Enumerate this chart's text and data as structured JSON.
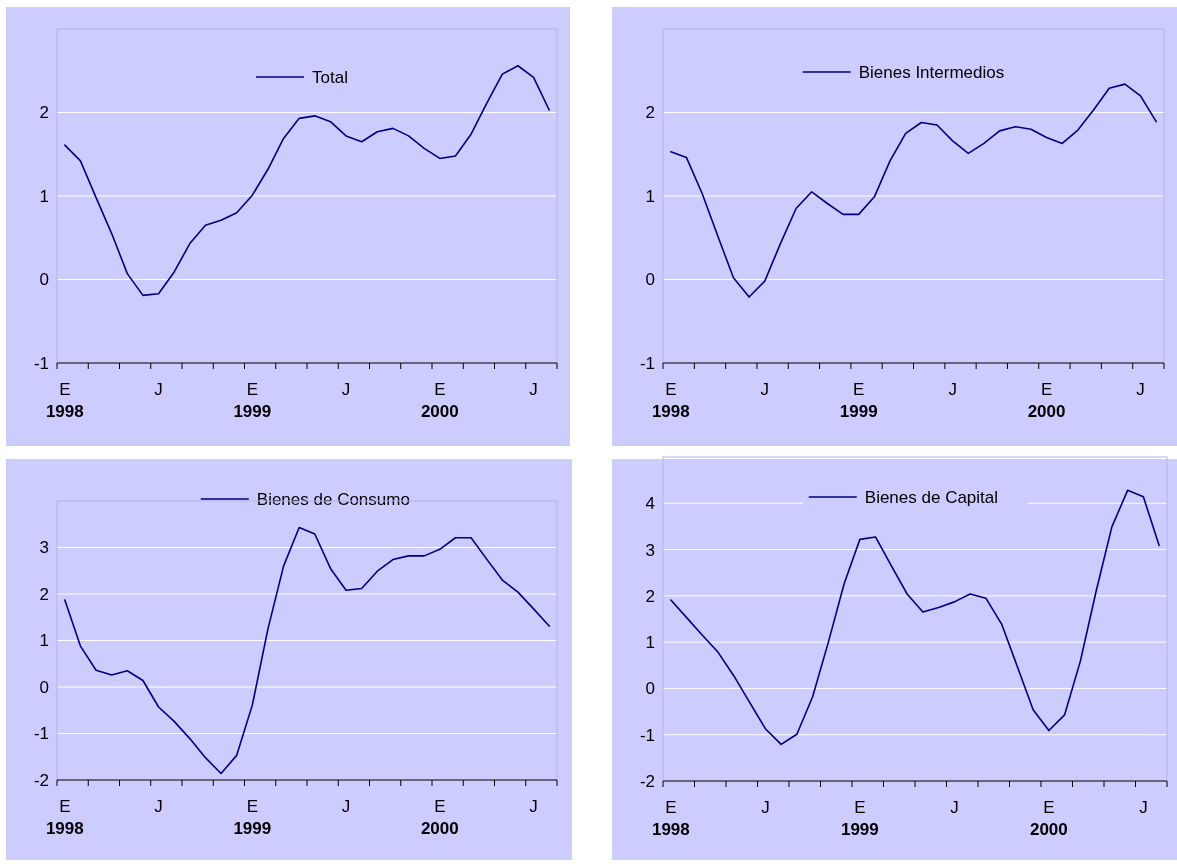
{
  "chart_data": [
    {
      "type": "line",
      "categories": [
        "E\n1998",
        null,
        null,
        null,
        null,
        null,
        "J",
        null,
        null,
        null,
        null,
        null,
        "E\n1999",
        null,
        null,
        null,
        null,
        null,
        "J",
        null,
        null,
        null,
        null,
        null,
        "E\n2000",
        null,
        null,
        null,
        null,
        null,
        "J",
        null
      ],
      "series": [
        {
          "name": "Total",
          "color": "#000080",
          "values": [
            1.61,
            1.42,
            0.98,
            0.55,
            0.07,
            -0.19,
            -0.17,
            0.09,
            0.43,
            0.65,
            0.71,
            0.8,
            1.01,
            1.32,
            1.69,
            1.93,
            1.96,
            1.89,
            1.72,
            1.65,
            1.77,
            1.81,
            1.72,
            1.57,
            1.45,
            1.48,
            1.74,
            2.11,
            2.46,
            2.56,
            2.42,
            2.03
          ]
        }
      ],
      "ylim": [
        -1,
        3
      ],
      "yticks": [
        -1,
        0,
        1,
        2
      ],
      "grid": "y",
      "legend": "top"
    },
    {
      "type": "line",
      "categories": [
        "E\n1998",
        null,
        null,
        null,
        null,
        null,
        "J",
        null,
        null,
        null,
        null,
        null,
        "E\n1999",
        null,
        null,
        null,
        null,
        null,
        "J",
        null,
        null,
        null,
        null,
        null,
        "E\n2000",
        null,
        null,
        null,
        null,
        null,
        "J",
        null
      ],
      "series": [
        {
          "name": "Bienes Intermedios",
          "color": "#000080",
          "values": [
            1.53,
            1.46,
            1.03,
            0.52,
            0.02,
            -0.21,
            -0.02,
            0.43,
            0.85,
            1.05,
            0.91,
            0.78,
            0.78,
            0.99,
            1.42,
            1.75,
            1.88,
            1.85,
            1.66,
            1.51,
            1.63,
            1.78,
            1.83,
            1.8,
            1.7,
            1.63,
            1.79,
            2.03,
            2.29,
            2.34,
            2.2,
            1.89
          ]
        }
      ],
      "ylim": [
        -1,
        3
      ],
      "yticks": [
        -1,
        0,
        1,
        2
      ],
      "grid": "y",
      "legend": "top"
    },
    {
      "type": "line",
      "categories": [
        "E\n1998",
        null,
        null,
        null,
        null,
        null,
        "J",
        null,
        null,
        null,
        null,
        null,
        "E\n1999",
        null,
        null,
        null,
        null,
        null,
        "J",
        null,
        null,
        null,
        null,
        null,
        "E\n2000",
        null,
        null,
        null,
        null,
        null,
        "J",
        null
      ],
      "series": [
        {
          "name": "Bienes de Consumo",
          "color": "#000080",
          "values": [
            1.87,
            0.88,
            0.36,
            0.26,
            0.35,
            0.14,
            -0.43,
            -0.74,
            -1.11,
            -1.52,
            -1.86,
            -1.47,
            -0.39,
            1.25,
            2.6,
            3.43,
            3.29,
            2.55,
            2.08,
            2.12,
            2.49,
            2.74,
            2.82,
            2.82,
            2.96,
            3.21,
            3.21,
            2.75,
            2.3,
            2.04,
            1.68,
            1.31
          ]
        }
      ],
      "ylim": [
        -2,
        4
      ],
      "yticks": [
        -2,
        -1,
        0,
        1,
        2,
        3
      ],
      "grid": "y",
      "legend": "top"
    },
    {
      "type": "line",
      "categories": [
        "E\n1998",
        null,
        null,
        null,
        null,
        null,
        "J",
        null,
        null,
        null,
        null,
        null,
        "E\n1999",
        null,
        null,
        null,
        null,
        null,
        "J",
        null,
        null,
        null,
        null,
        null,
        "E\n2000",
        null,
        null,
        null,
        null,
        null,
        "J",
        null
      ],
      "series": [
        {
          "name": "Bienes de Capital",
          "color": "#000080",
          "values": [
            1.91,
            1.53,
            1.15,
            0.78,
            0.27,
            -0.3,
            -0.87,
            -1.21,
            -0.99,
            -0.18,
            1.0,
            2.26,
            3.22,
            3.27,
            2.65,
            2.04,
            1.65,
            1.75,
            1.87,
            2.04,
            1.95,
            1.39,
            0.47,
            -0.46,
            -0.91,
            -0.57,
            0.59,
            2.1,
            3.49,
            4.28,
            4.14,
            3.09
          ]
        }
      ],
      "ylim": [
        -2,
        5
      ],
      "yticks": [
        -2,
        -1,
        0,
        1,
        2,
        3,
        4
      ],
      "grid": "y",
      "legend": "top"
    }
  ]
}
